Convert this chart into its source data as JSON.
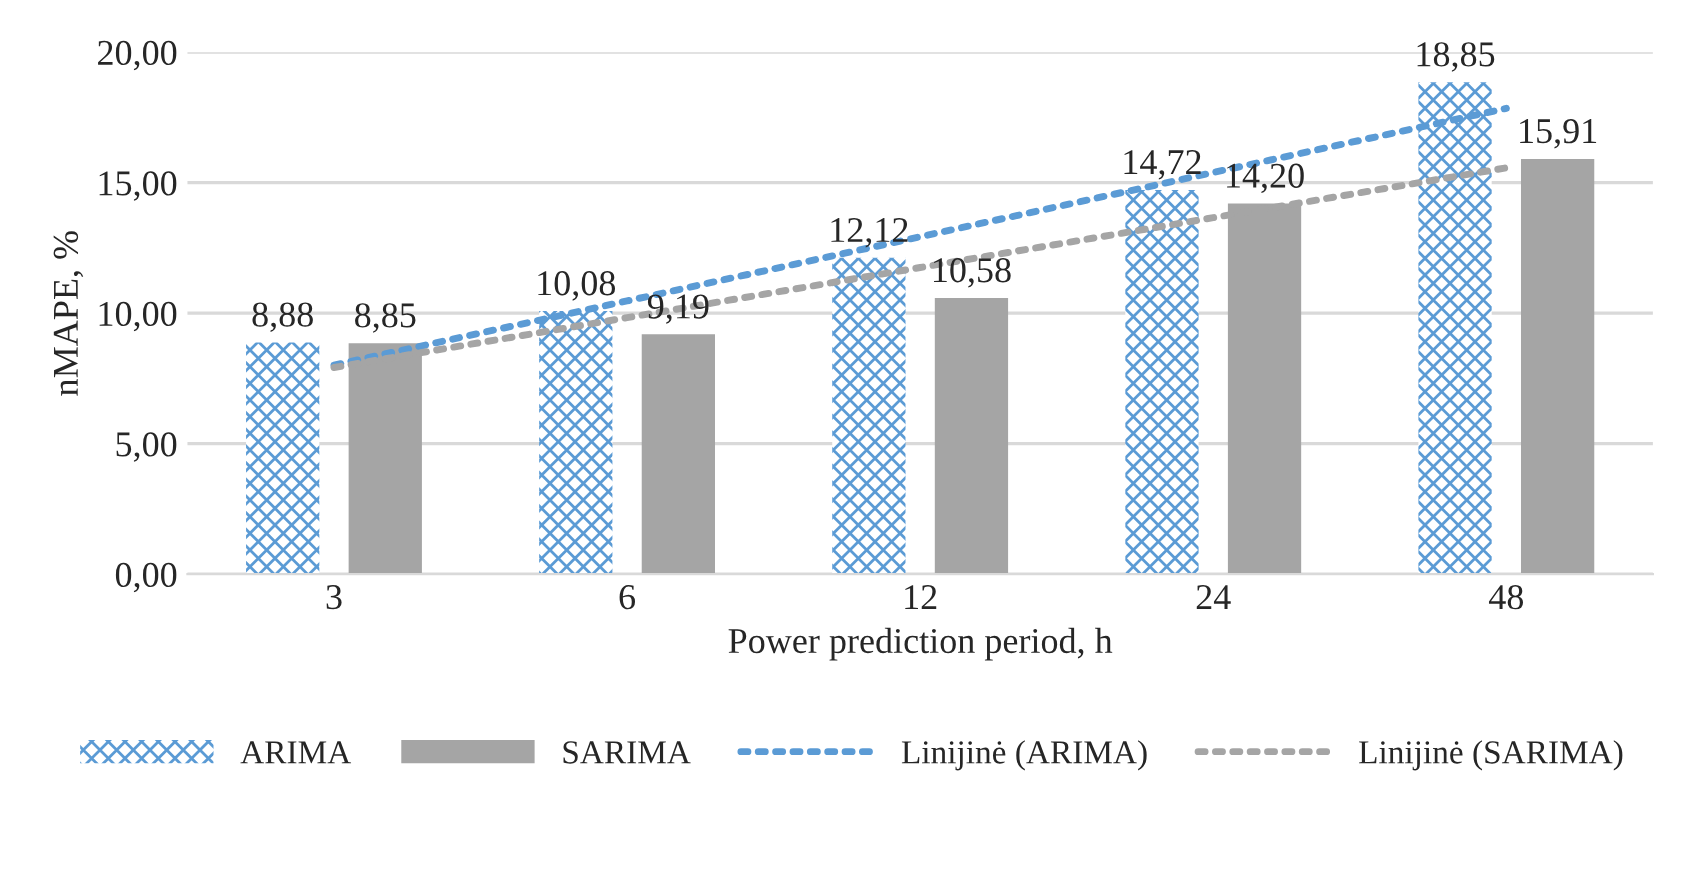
{
  "chart_data": {
    "type": "bar",
    "xlabel": "Power prediction period, h",
    "ylabel": "nMAPE, %",
    "categories": [
      "3",
      "6",
      "12",
      "24",
      "48"
    ],
    "series": [
      {
        "name": "ARIMA",
        "color": "#5b9bd5",
        "values": [
          8.88,
          10.08,
          12.12,
          14.72,
          18.85
        ],
        "value_labels": [
          "8,88",
          "10,08",
          "12,12",
          "14,72",
          "18,85"
        ]
      },
      {
        "name": "SARIMA",
        "color": "#a5a5a5",
        "values": [
          8.85,
          9.19,
          10.58,
          14.2,
          15.91
        ],
        "value_labels": [
          "8,85",
          "9,19",
          "10,58",
          "14,20",
          "15,91"
        ]
      },
      {
        "name": "Linijinė (ARIMA)",
        "type": "line",
        "line_style": "dotted",
        "color": "#5b9bd5",
        "values": [
          8.01,
          10.47,
          12.93,
          15.39,
          17.85
        ]
      },
      {
        "name": "Linijinė (SARIMA)",
        "type": "line",
        "line_style": "dotted",
        "color": "#a5a5a5",
        "values": [
          7.92,
          9.83,
          11.75,
          13.66,
          15.57
        ]
      }
    ],
    "ylim": [
      0,
      20
    ],
    "yticks": [
      {
        "value": 0,
        "label": "0,00"
      },
      {
        "value": 5,
        "label": "5,00"
      },
      {
        "value": 10,
        "label": "10,00"
      },
      {
        "value": 15,
        "label": "15,00"
      },
      {
        "value": 20,
        "label": "20,00"
      }
    ],
    "grid": "y",
    "legend": "bottom"
  }
}
